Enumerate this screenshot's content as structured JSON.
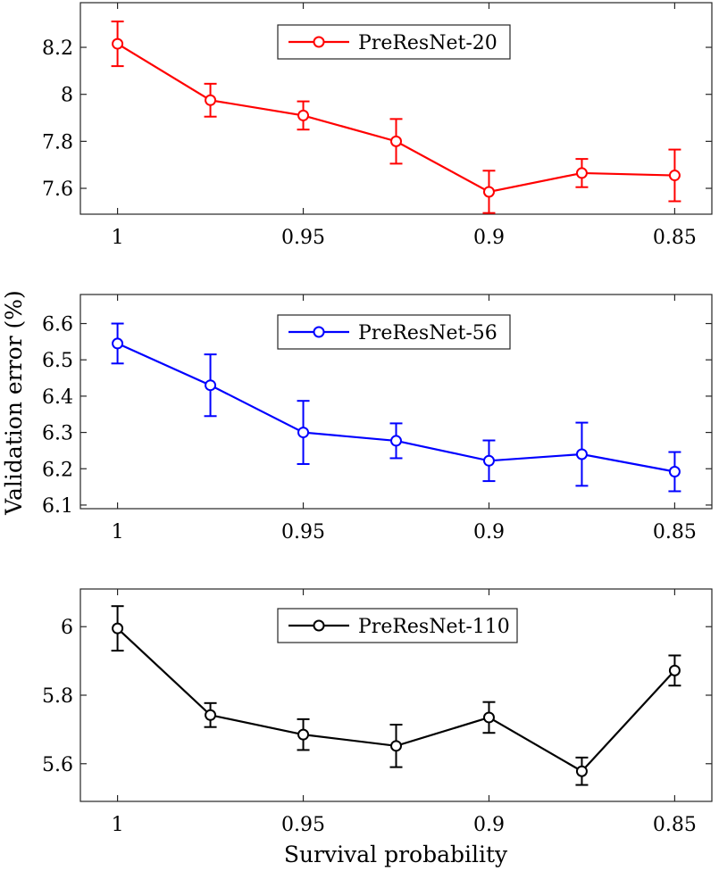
{
  "figure": {
    "ylabel": "Validation error (%)",
    "xlabel": "Survival probability"
  },
  "chart_data": [
    {
      "type": "line",
      "title": "",
      "xlabel": "",
      "ylabel": "",
      "x": [
        1,
        0.975,
        0.95,
        0.925,
        0.9,
        0.875,
        0.85
      ],
      "xlim": [
        1.01,
        0.84
      ],
      "xticks": [
        1,
        0.95,
        0.9,
        0.85
      ],
      "xtick_labels": [
        "1",
        "0.95",
        "0.9",
        "0.85"
      ],
      "ylim": [
        7.49,
        8.39
      ],
      "yticks": [
        7.6,
        7.8,
        8,
        8.2
      ],
      "ytick_labels": [
        "7.6",
        "7.8",
        "8",
        "8.2"
      ],
      "grid": false,
      "legend_position": "top-center",
      "series": [
        {
          "name": "PreResNet-20",
          "color": "#ff0000",
          "marker": "circle",
          "values": [
            8.215,
            7.975,
            7.91,
            7.8,
            7.585,
            7.665,
            7.655
          ],
          "error": [
            0.095,
            0.07,
            0.06,
            0.095,
            0.09,
            0.06,
            0.11
          ]
        }
      ]
    },
    {
      "type": "line",
      "title": "",
      "xlabel": "",
      "ylabel": "",
      "x": [
        1,
        0.975,
        0.95,
        0.925,
        0.9,
        0.875,
        0.85
      ],
      "xlim": [
        1.01,
        0.84
      ],
      "xticks": [
        1,
        0.95,
        0.9,
        0.85
      ],
      "xtick_labels": [
        "1",
        "0.95",
        "0.9",
        "0.85"
      ],
      "ylim": [
        6.09,
        6.68
      ],
      "yticks": [
        6.1,
        6.2,
        6.3,
        6.4,
        6.5,
        6.6
      ],
      "ytick_labels": [
        "6.1",
        "6.2",
        "6.3",
        "6.4",
        "6.5",
        "6.6"
      ],
      "grid": false,
      "legend_position": "top-center",
      "series": [
        {
          "name": "PreResNet-56",
          "color": "#0000ff",
          "marker": "circle",
          "values": [
            6.545,
            6.43,
            6.3,
            6.277,
            6.222,
            6.24,
            6.192
          ],
          "error": [
            0.055,
            0.085,
            0.087,
            0.048,
            0.056,
            0.087,
            0.054
          ]
        }
      ]
    },
    {
      "type": "line",
      "title": "",
      "xlabel": "Survival probability",
      "ylabel": "",
      "x": [
        1,
        0.975,
        0.95,
        0.925,
        0.9,
        0.875,
        0.85
      ],
      "xlim": [
        1.01,
        0.84
      ],
      "xticks": [
        1,
        0.95,
        0.9,
        0.85
      ],
      "xtick_labels": [
        "1",
        "0.95",
        "0.9",
        "0.85"
      ],
      "ylim": [
        5.49,
        6.11
      ],
      "yticks": [
        5.6,
        5.8,
        6
      ],
      "ytick_labels": [
        "5.6",
        "5.8",
        "6"
      ],
      "grid": false,
      "legend_position": "top-center",
      "series": [
        {
          "name": "PreResNet-110",
          "color": "#000000",
          "marker": "circle",
          "values": [
            5.995,
            5.742,
            5.685,
            5.652,
            5.735,
            5.578,
            5.872
          ],
          "error": [
            0.065,
            0.035,
            0.045,
            0.062,
            0.045,
            0.04,
            0.044
          ]
        }
      ]
    }
  ]
}
